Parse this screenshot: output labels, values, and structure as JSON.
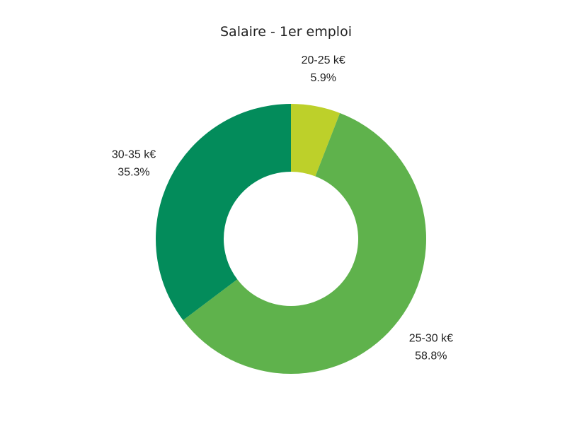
{
  "chart_data": {
    "type": "pie",
    "title": "Salaire - 1er emploi",
    "donut": true,
    "slices": [
      {
        "label": "20-25 k€",
        "percent_label": "5.9%",
        "value": 5.9,
        "color": "#bdd02a"
      },
      {
        "label": "25-30 k€",
        "percent_label": "58.8%",
        "value": 58.8,
        "color": "#5fb24c"
      },
      {
        "label": "30-35 k€",
        "percent_label": "35.3%",
        "value": 35.3,
        "color": "#038c5b"
      }
    ]
  }
}
